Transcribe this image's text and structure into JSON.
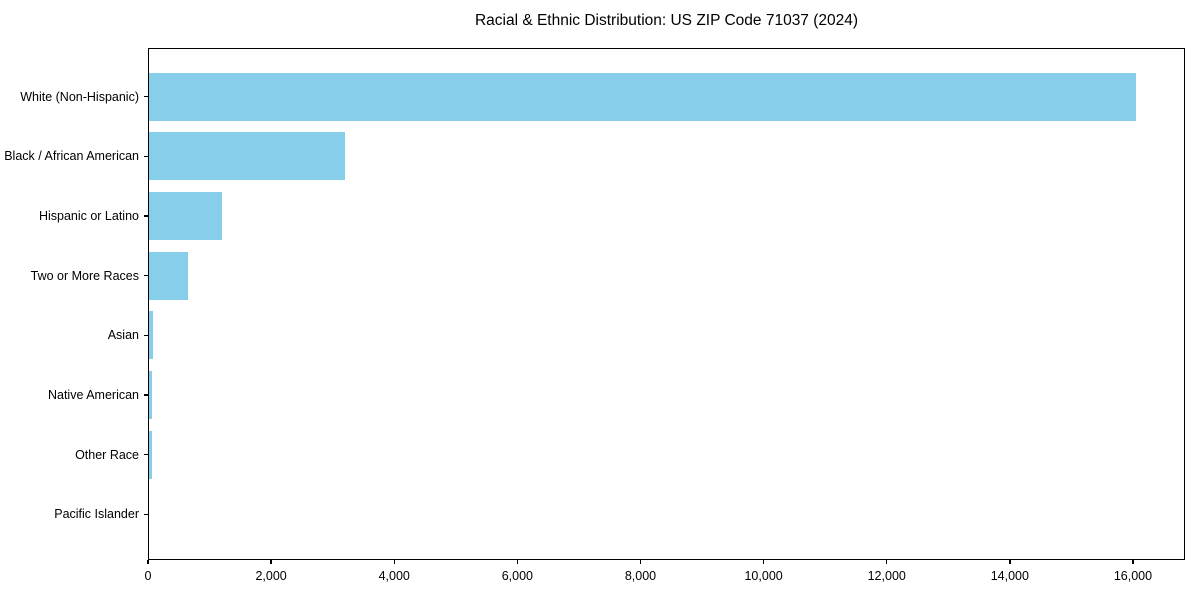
{
  "title": "Racial & Ethnic Distribution: US ZIP Code 71037 (2024)",
  "chart_data": {
    "type": "bar",
    "orientation": "horizontal",
    "title": "Racial & Ethnic Distribution: US ZIP Code 71037 (2024)",
    "categories": [
      "White (Non-Hispanic)",
      "Black / African American",
      "Hispanic or Latino",
      "Two or More Races",
      "Asian",
      "Native American",
      "Other Race",
      "Pacific Islander"
    ],
    "values": [
      16040,
      3180,
      1180,
      640,
      60,
      40,
      45,
      0
    ],
    "xlabel": "",
    "ylabel": "",
    "xlim": [
      0,
      16845
    ],
    "x_ticks": [
      0,
      2000,
      4000,
      6000,
      8000,
      10000,
      12000,
      14000,
      16000
    ],
    "x_tick_labels": [
      "0",
      "2,000",
      "4,000",
      "6,000",
      "8,000",
      "10,000",
      "12,000",
      "14,000",
      "16,000"
    ],
    "bar_color": "#87CEEB",
    "axis_color": "#000000",
    "grid": false,
    "legend": null
  }
}
